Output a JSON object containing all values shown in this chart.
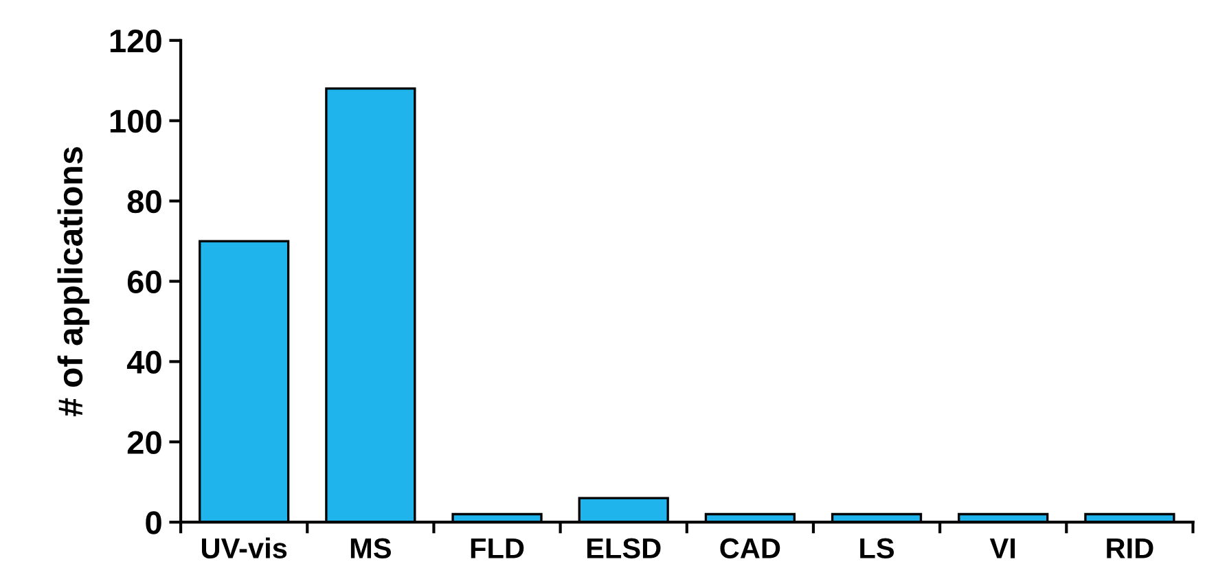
{
  "chart_data": {
    "type": "bar",
    "ylabel": "# of applications",
    "categories": [
      "UV-vis",
      "MS",
      "FLD",
      "ELSD",
      "CAD",
      "LS",
      "VI",
      "RID"
    ],
    "values": [
      70,
      108,
      2,
      6,
      2,
      2,
      2,
      2
    ],
    "color": "#1fb4ec",
    "ylim": [
      0,
      120
    ],
    "yticks": [
      0,
      20,
      40,
      60,
      80,
      100,
      120
    ],
    "grid": false
  }
}
